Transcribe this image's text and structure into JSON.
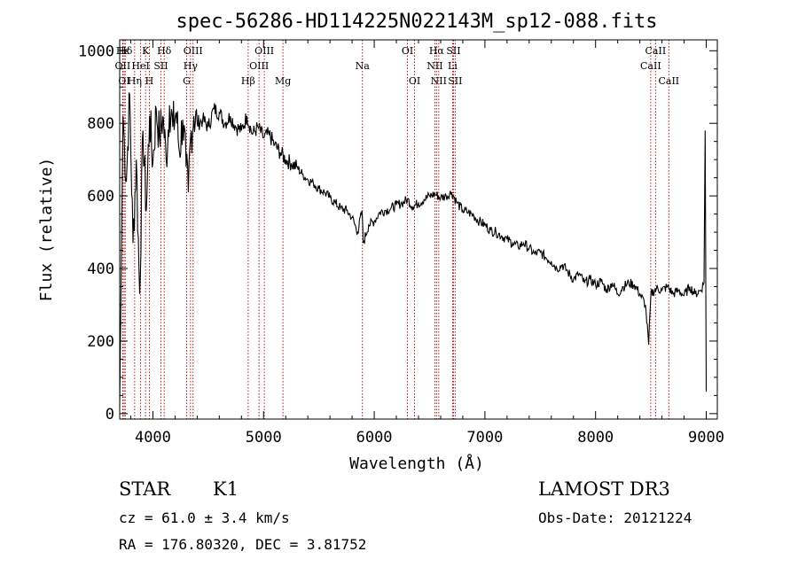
{
  "chart_data": {
    "type": "line",
    "title": "spec-56286-HD114225N022143M_sp12-088.fits",
    "xlabel": "Wavelength (Å)",
    "ylabel": "Flux (relative)",
    "xlim": [
      3700,
      9100
    ],
    "ylim": [
      -15,
      1030
    ],
    "xticks": [
      4000,
      5000,
      6000,
      7000,
      8000,
      9000
    ],
    "yticks": [
      0,
      200,
      400,
      600,
      800,
      1000
    ],
    "series": [
      {
        "name": "flux",
        "x": [
          3700,
          3730,
          3760,
          3790,
          3820,
          3850,
          3880,
          3910,
          3940,
          3970,
          4000,
          4030,
          4060,
          4090,
          4120,
          4150,
          4180,
          4210,
          4240,
          4270,
          4300,
          4320,
          4340,
          4370,
          4400,
          4450,
          4500,
          4550,
          4600,
          4650,
          4700,
          4750,
          4800,
          4850,
          4900,
          4950,
          5000,
          5050,
          5100,
          5150,
          5200,
          5250,
          5300,
          5350,
          5400,
          5450,
          5500,
          5550,
          5600,
          5650,
          5700,
          5750,
          5800,
          5850,
          5890,
          5900,
          5950,
          6000,
          6050,
          6100,
          6150,
          6200,
          6250,
          6300,
          6350,
          6400,
          6450,
          6500,
          6550,
          6600,
          6650,
          6700,
          6750,
          6800,
          6850,
          6900,
          6950,
          7000,
          7050,
          7100,
          7150,
          7200,
          7250,
          7300,
          7350,
          7400,
          7450,
          7500,
          7550,
          7600,
          7650,
          7700,
          7750,
          7800,
          7850,
          7900,
          7950,
          8000,
          8050,
          8100,
          8150,
          8200,
          8250,
          8300,
          8350,
          8400,
          8450,
          8480,
          8500,
          8550,
          8600,
          8650,
          8700,
          8750,
          8800,
          8850,
          8900,
          8950,
          8980,
          8990,
          9000
        ],
        "y": [
          20,
          820,
          640,
          880,
          470,
          700,
          330,
          780,
          560,
          820,
          690,
          840,
          760,
          820,
          700,
          850,
          790,
          830,
          720,
          810,
          680,
          610,
          760,
          820,
          800,
          810,
          790,
          840,
          830,
          800,
          820,
          790,
          780,
          820,
          770,
          790,
          760,
          770,
          740,
          720,
          700,
          690,
          680,
          660,
          645,
          635,
          620,
          610,
          595,
          580,
          565,
          560,
          540,
          500,
          560,
          470,
          520,
          530,
          555,
          560,
          565,
          575,
          580,
          590,
          570,
          580,
          590,
          600,
          605,
          595,
          600,
          610,
          580,
          560,
          555,
          545,
          530,
          520,
          505,
          500,
          490,
          480,
          470,
          460,
          470,
          455,
          440,
          445,
          430,
          420,
          400,
          410,
          390,
          370,
          385,
          360,
          370,
          355,
          365,
          340,
          360,
          330,
          350,
          360,
          355,
          330,
          300,
          190,
          330,
          345,
          340,
          350,
          330,
          340,
          325,
          350,
          330,
          340,
          360,
          780,
          60
        ]
      }
    ],
    "lines": [
      {
        "name": "Hε",
        "x": 3728,
        "row": 0
      },
      {
        "name": "Hδ",
        "x": 3750,
        "row": 0
      },
      {
        "name": "K",
        "x": 3934,
        "row": 0
      },
      {
        "name": "Hδ",
        "x": 4102,
        "row": 0
      },
      {
        "name": "OIII",
        "x": 4363,
        "row": 0
      },
      {
        "name": "OIII",
        "x": 5007,
        "row": 0
      },
      {
        "name": "OI",
        "x": 6300,
        "row": 0
      },
      {
        "name": "Hα",
        "x": 6563,
        "row": 0
      },
      {
        "name": "SII",
        "x": 6716,
        "row": 0
      },
      {
        "name": "CaII",
        "x": 8542,
        "row": 0
      },
      {
        "name": "OII",
        "x": 3727,
        "row": 1
      },
      {
        "name": "HeI",
        "x": 3889,
        "row": 1
      },
      {
        "name": "SII",
        "x": 4072,
        "row": 1
      },
      {
        "name": "Hγ",
        "x": 4340,
        "row": 1
      },
      {
        "name": "OIII",
        "x": 4959,
        "row": 1
      },
      {
        "name": "Na",
        "x": 5893,
        "row": 1
      },
      {
        "name": "NII",
        "x": 6548,
        "row": 1
      },
      {
        "name": "Li",
        "x": 6708,
        "row": 1
      },
      {
        "name": "CaII",
        "x": 8498,
        "row": 1
      },
      {
        "name": "OI",
        "x": 3740,
        "row": 2
      },
      {
        "name": "Hη",
        "x": 3835,
        "row": 2
      },
      {
        "name": "H",
        "x": 3968,
        "row": 2
      },
      {
        "name": "G",
        "x": 4305,
        "row": 2
      },
      {
        "name": "Hβ",
        "x": 4861,
        "row": 2
      },
      {
        "name": "Mg",
        "x": 5175,
        "row": 2
      },
      {
        "name": "OI",
        "x": 6364,
        "row": 2
      },
      {
        "name": "NII",
        "x": 6583,
        "row": 2
      },
      {
        "name": "SII",
        "x": 6731,
        "row": 2
      },
      {
        "name": "CaII",
        "x": 8662,
        "row": 2
      }
    ],
    "colors": {
      "line": "#000000",
      "marker": "#b00000"
    }
  },
  "info": {
    "class": "STAR",
    "subclass": "K1",
    "survey": "LAMOST DR3",
    "cz": "cz = 61.0 ± 3.4 km/s",
    "obs_date": "Obs-Date: 20121224",
    "radec": "RA = 176.80320, DEC =    3.81752"
  }
}
